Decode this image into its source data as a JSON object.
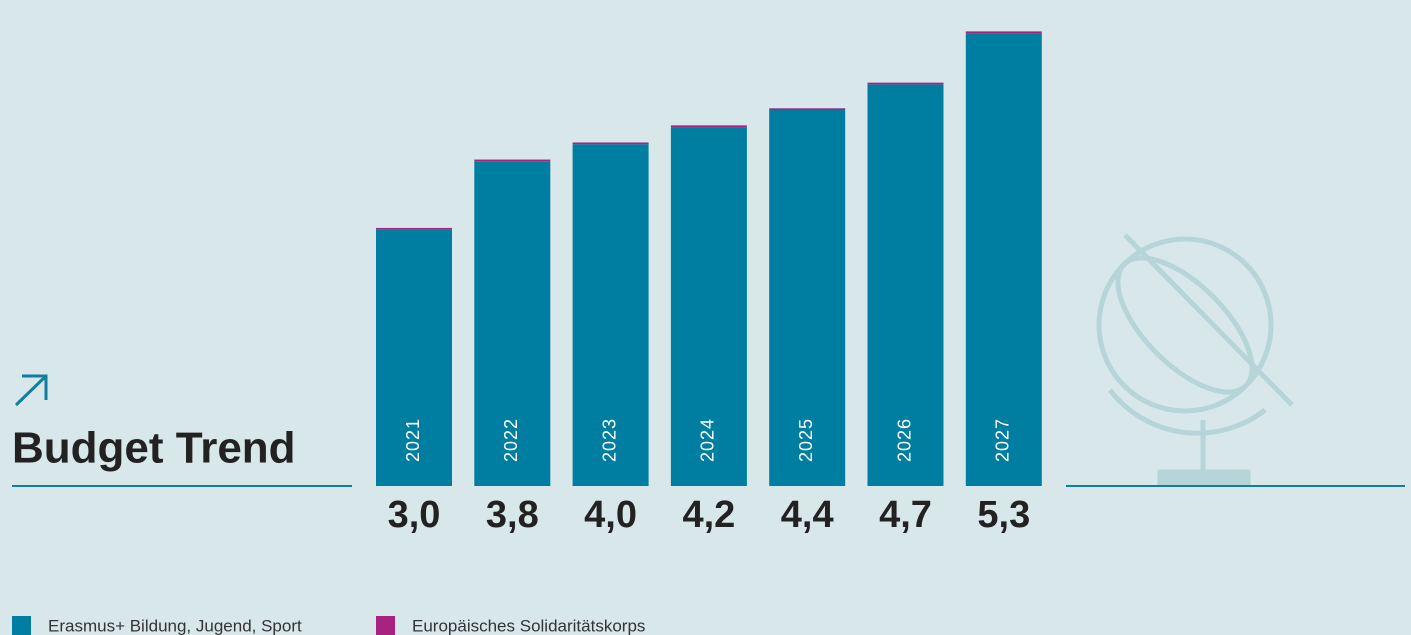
{
  "chart_data": {
    "type": "stacked-bar",
    "title": "Budget Trend",
    "categories": [
      "2021",
      "2022",
      "2023",
      "2024",
      "2025",
      "2026",
      "2027"
    ],
    "series": [
      {
        "name": "Erasmus+ Bildung, Jugend, Sport",
        "color": "#007ea1",
        "values": [
          3.0,
          3.8,
          4.0,
          4.2,
          4.4,
          4.7,
          5.3
        ],
        "value_labels": [
          "3,0",
          "3,8",
          "4,0",
          "4,2",
          "4,4",
          "4,7",
          "5,3"
        ]
      },
      {
        "name": "Europäisches Solidaritätskorps",
        "color": "#a8237f",
        "values": [
          0.02,
          0.02,
          0.02,
          0.02,
          0.02,
          0.02,
          0.02
        ]
      }
    ],
    "ylim": [
      0,
      5.5
    ]
  }
}
